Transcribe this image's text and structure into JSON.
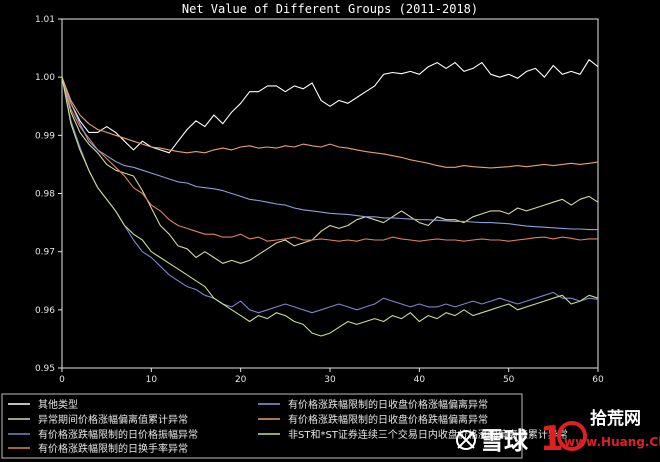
{
  "chart_data": {
    "type": "line",
    "title": "Net Value of Different Groups (2011-2018)",
    "xlabel": "",
    "ylabel": "",
    "xlim": [
      0,
      60
    ],
    "ylim": [
      0.95,
      1.01
    ],
    "x_ticks": [
      "0",
      "10",
      "20",
      "30",
      "40",
      "50",
      "60"
    ],
    "y_ticks": [
      "0.95",
      "0.96",
      "0.97",
      "0.98",
      "0.99",
      "1.00",
      "1.01"
    ],
    "grid": false,
    "legend_placement": "bottom",
    "series": [
      {
        "name": "其他类型",
        "color": "#ffffff",
        "values": [
          1.0,
          0.9955,
          0.9925,
          0.9905,
          0.9905,
          0.9915,
          0.9905,
          0.989,
          0.9875,
          0.989,
          0.988,
          0.9875,
          0.987,
          0.989,
          0.991,
          0.9925,
          0.9915,
          0.9935,
          0.992,
          0.994,
          0.9955,
          0.9975,
          0.9975,
          0.9985,
          0.9985,
          0.9975,
          0.9985,
          0.998,
          0.999,
          0.996,
          0.995,
          0.996,
          0.9955,
          0.9965,
          0.9975,
          0.9985,
          1.0005,
          1.0008,
          1.0006,
          1.001,
          1.0005,
          1.0018,
          1.0025,
          1.0015,
          1.0025,
          1.001,
          1.0015,
          1.0025,
          1.0005,
          1.0,
          1.0005,
          0.9998,
          1.001,
          1.0015,
          1.0,
          1.002,
          1.0005,
          1.001,
          1.0005,
          1.003,
          1.0018
        ]
      },
      {
        "name": "异常期间价格涨幅偏离值累计异常",
        "color": "#d8d8a0",
        "values": [
          1.0,
          0.994,
          0.9905,
          0.9885,
          0.987,
          0.985,
          0.984,
          0.9835,
          0.983,
          0.9805,
          0.9775,
          0.9745,
          0.973,
          0.971,
          0.9705,
          0.969,
          0.97,
          0.969,
          0.968,
          0.9685,
          0.968,
          0.9685,
          0.9695,
          0.9705,
          0.9715,
          0.972,
          0.971,
          0.9715,
          0.972,
          0.9735,
          0.9745,
          0.974,
          0.9745,
          0.9755,
          0.976,
          0.9755,
          0.975,
          0.976,
          0.977,
          0.976,
          0.975,
          0.9745,
          0.976,
          0.9755,
          0.9755,
          0.975,
          0.976,
          0.9765,
          0.977,
          0.977,
          0.9765,
          0.9775,
          0.977,
          0.9775,
          0.978,
          0.9785,
          0.979,
          0.978,
          0.979,
          0.9795,
          0.9785
        ]
      },
      {
        "name": "有价格涨跌幅限制的日价格振幅异常",
        "color": "#7a86c8",
        "values": [
          1.0,
          0.9925,
          0.988,
          0.984,
          0.981,
          0.979,
          0.977,
          0.9745,
          0.972,
          0.97,
          0.969,
          0.9675,
          0.966,
          0.965,
          0.964,
          0.9635,
          0.9625,
          0.962,
          0.961,
          0.9605,
          0.9615,
          0.96,
          0.9595,
          0.96,
          0.9605,
          0.961,
          0.9605,
          0.96,
          0.9595,
          0.96,
          0.9605,
          0.961,
          0.9605,
          0.96,
          0.9605,
          0.961,
          0.962,
          0.9615,
          0.961,
          0.9605,
          0.961,
          0.9605,
          0.9605,
          0.961,
          0.9605,
          0.961,
          0.9615,
          0.961,
          0.9615,
          0.962,
          0.9615,
          0.961,
          0.9615,
          0.962,
          0.9625,
          0.963,
          0.962,
          0.962,
          0.9615,
          0.962,
          0.9618
        ]
      },
      {
        "name": "有价格涨跌幅限制的日换手率异常",
        "color": "#e08060",
        "values": [
          1.0,
          0.9945,
          0.9915,
          0.9895,
          0.9875,
          0.986,
          0.9845,
          0.983,
          0.981,
          0.98,
          0.978,
          0.977,
          0.9755,
          0.9745,
          0.974,
          0.9735,
          0.973,
          0.973,
          0.9725,
          0.9725,
          0.973,
          0.9722,
          0.9725,
          0.9718,
          0.972,
          0.9722,
          0.9725,
          0.972,
          0.972,
          0.9722,
          0.972,
          0.9718,
          0.972,
          0.9718,
          0.9722,
          0.972,
          0.972,
          0.9725,
          0.9722,
          0.972,
          0.9718,
          0.972,
          0.9722,
          0.972,
          0.972,
          0.9718,
          0.972,
          0.9722,
          0.972,
          0.972,
          0.9718,
          0.972,
          0.9722,
          0.9724,
          0.9725,
          0.9722,
          0.9725,
          0.9723,
          0.972,
          0.9722,
          0.9722
        ]
      },
      {
        "name": "有价格涨跌幅限制的日收盘价格涨幅偏离异常",
        "color": "#8aa0d8",
        "values": [
          1.0,
          0.9955,
          0.992,
          0.989,
          0.9875,
          0.9865,
          0.9855,
          0.9848,
          0.9845,
          0.984,
          0.9835,
          0.983,
          0.9825,
          0.982,
          0.9818,
          0.9812,
          0.981,
          0.9808,
          0.9805,
          0.98,
          0.9795,
          0.979,
          0.9788,
          0.9785,
          0.9782,
          0.978,
          0.9775,
          0.9772,
          0.977,
          0.9768,
          0.9766,
          0.9765,
          0.9764,
          0.9762,
          0.976,
          0.976,
          0.9758,
          0.9758,
          0.9757,
          0.9756,
          0.9755,
          0.9755,
          0.9754,
          0.9753,
          0.9752,
          0.9752,
          0.9751,
          0.975,
          0.975,
          0.9749,
          0.9748,
          0.9746,
          0.9744,
          0.9743,
          0.9742,
          0.9741,
          0.974,
          0.9739,
          0.9739,
          0.9738,
          0.9738
        ]
      },
      {
        "name": "有价格涨跌幅限制的日收盘价格跌幅偏离异常",
        "color": "#e8a070",
        "values": [
          1.0,
          0.996,
          0.9935,
          0.992,
          0.991,
          0.9905,
          0.99,
          0.9895,
          0.989,
          0.9885,
          0.988,
          0.9878,
          0.9875,
          0.9872,
          0.987,
          0.9872,
          0.987,
          0.9875,
          0.9878,
          0.9875,
          0.988,
          0.9882,
          0.9878,
          0.988,
          0.9878,
          0.9882,
          0.988,
          0.9885,
          0.9882,
          0.988,
          0.9885,
          0.988,
          0.9878,
          0.9875,
          0.9872,
          0.987,
          0.9868,
          0.9865,
          0.9862,
          0.9858,
          0.9855,
          0.9852,
          0.9848,
          0.9845,
          0.9845,
          0.9848,
          0.9846,
          0.9845,
          0.9844,
          0.9845,
          0.9846,
          0.9848,
          0.9846,
          0.9848,
          0.985,
          0.9848,
          0.985,
          0.9852,
          0.985,
          0.9852,
          0.9854
        ]
      },
      {
        "name": "非ST和*ST证券连续三个交易日内收盘价格涨幅偏离值累计异常",
        "color": "#c4e090",
        "values": [
          1.0,
          0.992,
          0.9875,
          0.984,
          0.981,
          0.979,
          0.977,
          0.9745,
          0.973,
          0.972,
          0.97,
          0.969,
          0.968,
          0.967,
          0.966,
          0.965,
          0.964,
          0.962,
          0.961,
          0.96,
          0.959,
          0.958,
          0.959,
          0.9585,
          0.9595,
          0.959,
          0.958,
          0.9575,
          0.956,
          0.9555,
          0.956,
          0.957,
          0.958,
          0.9575,
          0.958,
          0.9585,
          0.958,
          0.959,
          0.9585,
          0.9595,
          0.958,
          0.959,
          0.9585,
          0.9595,
          0.959,
          0.96,
          0.959,
          0.9595,
          0.96,
          0.9605,
          0.961,
          0.96,
          0.9605,
          0.961,
          0.9615,
          0.962,
          0.9625,
          0.961,
          0.9615,
          0.9625,
          0.962
        ]
      }
    ]
  },
  "watermark": {
    "brand": "雪球",
    "logo_mark": "1",
    "site_text": "拾荒网",
    "site_url": "www.Huang.CN",
    "brand_color": "#ffffff",
    "logo_color": "#e02020"
  }
}
